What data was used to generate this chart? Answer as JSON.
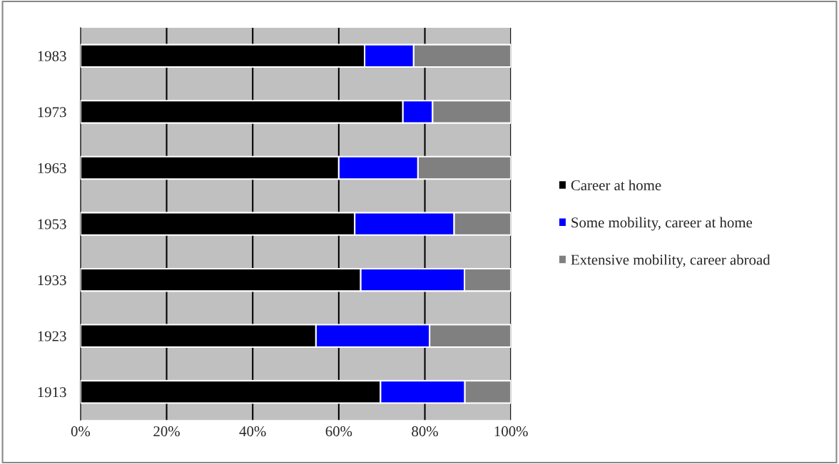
{
  "chart_data": {
    "type": "bar",
    "orientation": "horizontal",
    "stacked": true,
    "categories": [
      "1983",
      "1973",
      "1963",
      "1953",
      "1933",
      "1923",
      "1913"
    ],
    "series": [
      {
        "name": "Career at home",
        "color": "#000000",
        "values": [
          66.0,
          74.9,
          60.0,
          63.7,
          65.1,
          54.7,
          69.7
        ]
      },
      {
        "name": "Some mobility, career at home",
        "color": "#0000ff",
        "values": [
          11.4,
          6.9,
          18.4,
          23.1,
          24.1,
          26.4,
          19.6
        ]
      },
      {
        "name": "Extensive mobility, career abroad",
        "color": "#808080",
        "values": [
          22.6,
          18.2,
          21.6,
          13.2,
          10.8,
          18.9,
          10.7
        ]
      }
    ],
    "xlim": [
      0,
      100
    ],
    "xticks": [
      {
        "value": 0,
        "label": "0%"
      },
      {
        "value": 20,
        "label": "20%"
      },
      {
        "value": 40,
        "label": "40%"
      },
      {
        "value": 60,
        "label": "60%"
      },
      {
        "value": 80,
        "label": "80%"
      },
      {
        "value": 100,
        "label": "100%"
      }
    ],
    "grid": "x",
    "legend": "right"
  }
}
